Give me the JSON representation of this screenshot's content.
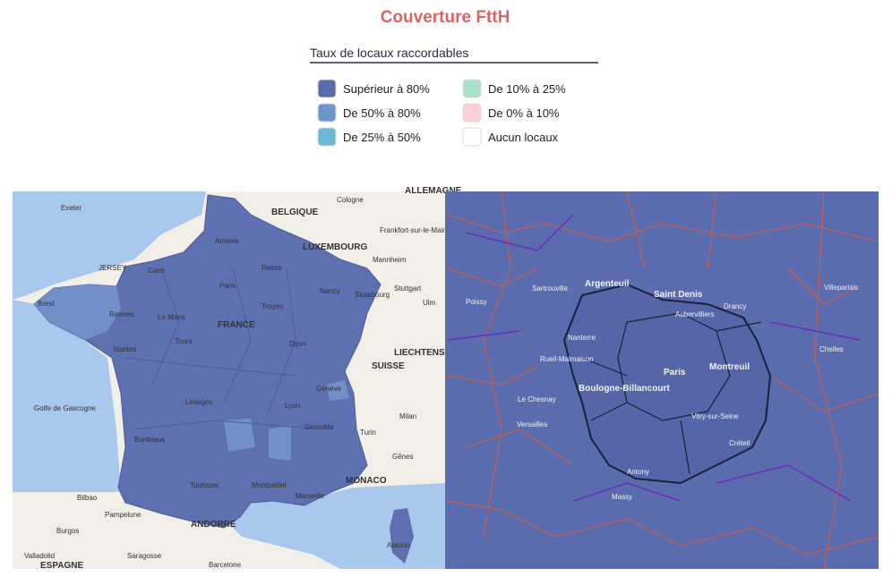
{
  "header": {
    "title": "Couverture FttH"
  },
  "legend": {
    "title": "Taux de locaux raccordables",
    "items": [
      {
        "label": "Supérieur à 80%",
        "color": "#5b6aa8"
      },
      {
        "label": "De 50% à 80%",
        "color": "#6f96cc"
      },
      {
        "label": "De 25% à 50%",
        "color": "#6cb8d6"
      },
      {
        "label": "De 10% à 25%",
        "color": "#a8e0c8"
      },
      {
        "label": "De 0% à 10%",
        "color": "#fcd0d6"
      },
      {
        "label": "Aucun locaux",
        "color": "#ffffff"
      }
    ]
  },
  "map_left": {
    "labels": [
      "Exeter",
      "JERSEY",
      "Brest",
      "Rennes",
      "Caen",
      "Le Mans",
      "FRANCE",
      "Tours",
      "Nantes",
      "Bordeaux",
      "Toulouse",
      "Limoges",
      "Lyon",
      "Grenoble",
      "Marseille",
      "Montpellier",
      "Dijon",
      "Troyes",
      "Reims",
      "Nancy",
      "Strasbourg",
      "Amiens",
      "Paris",
      "BELGIQUE",
      "LUXEMBOURG",
      "SUISSE",
      "Genève",
      "Cologne",
      "Frankfort-sur-le-Main",
      "Mannheim",
      "Stuttgart",
      "Ulm",
      "LIECHTENSTEIN",
      "Milan",
      "Turin",
      "Gênes",
      "MONACO",
      "ANDORRE",
      "Bilbao",
      "Pampelune",
      "Burgos",
      "Valladolid",
      "Saragosse",
      "Barcelone",
      "ESPAGNE",
      "Golfe de Gascogne",
      "Ajaccio",
      "ALLEMAGNE"
    ]
  },
  "map_right": {
    "labels": [
      "Argenteuil",
      "Saint Denis",
      "Paris",
      "Montreuil",
      "Boulogne-Billancourt",
      "Versailles",
      "Nanterre",
      "Créteil",
      "Le Chesnay",
      "Poissy",
      "Aubervilliers",
      "Massy",
      "Vitry-sur-Seine",
      "Chelles",
      "Villeparisis",
      "Sartrouville",
      "Rueil-Malmaison",
      "Drancy",
      "Antony"
    ]
  }
}
